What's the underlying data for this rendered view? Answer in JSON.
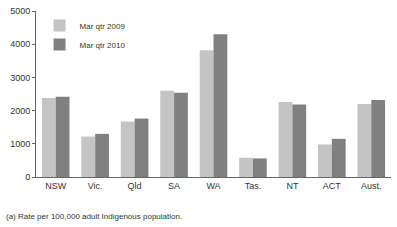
{
  "chart_data": {
    "type": "bar",
    "categories": [
      "NSW",
      "Vic.",
      "Qld",
      "SA",
      "WA",
      "Tas.",
      "NT",
      "ACT",
      "Aust."
    ],
    "series": [
      {
        "name": "Mar qtr 2009",
        "color": "#c4c4c4",
        "values": [
          2380,
          1220,
          1670,
          2600,
          3820,
          580,
          2260,
          980,
          2200
        ]
      },
      {
        "name": "Mar qtr 2010",
        "color": "#808080",
        "values": [
          2420,
          1300,
          1760,
          2540,
          4300,
          560,
          2180,
          1150,
          2320
        ]
      }
    ],
    "ylim": [
      0,
      5000
    ],
    "yticks": [
      0,
      1000,
      2000,
      3000,
      4000,
      5000
    ],
    "grid": false,
    "legend": "top-left",
    "annotations": [
      "(a) Rate per 100,000 adult Indigenous population."
    ]
  }
}
